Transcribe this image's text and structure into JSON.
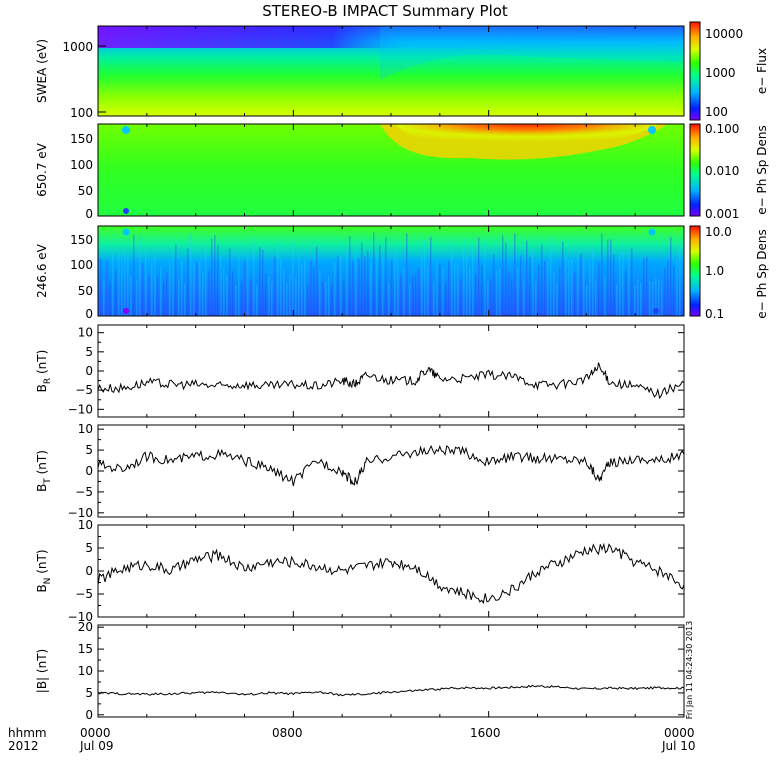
{
  "title": "STEREO-B IMPACT Summary Plot",
  "footer": {
    "time_label": "hhmm",
    "year_label": "2012",
    "ticks": [
      {
        "time": "0000",
        "date": "Jul 09"
      },
      {
        "time": "0800",
        "date": ""
      },
      {
        "time": "1600",
        "date": ""
      },
      {
        "time": "0000",
        "date": "Jul 10"
      }
    ]
  },
  "timestamp_text": "Fri Jan 11 04:24:30 2013",
  "chart_data": [
    {
      "type": "heatmap",
      "ylabel": "SWEA (eV)",
      "yscale": "log",
      "ylim": [
        100,
        1800
      ],
      "yticks": [
        "1000",
        "100"
      ],
      "colorbar_label": "e− Flux",
      "colorbar_scale": "log",
      "colorbar_ticks": [
        "10000",
        "1000",
        "100"
      ],
      "colormap": "rainbow",
      "description_values": "high flux at low energies, flux near 1000 at mid energies, higher-energy flux increasing after ~1100"
    },
    {
      "type": "heatmap",
      "ylabel": "650.7 eV",
      "ylim": [
        0,
        180
      ],
      "yticks": [
        "150",
        "100",
        "50",
        "0"
      ],
      "colorbar_label": "e− Ph Sp Dens",
      "colorbar_scale": "log",
      "colorbar_ticks": [
        "0.100",
        "0.010",
        "0.001"
      ],
      "colormap": "rainbow"
    },
    {
      "type": "heatmap",
      "ylabel": "246.6 eV",
      "ylim": [
        0,
        180
      ],
      "yticks": [
        "150",
        "100",
        "50",
        "0"
      ],
      "colorbar_label": "e− Ph Sp Dens",
      "colorbar_scale": "log",
      "colorbar_ticks": [
        "10.0",
        "1.0",
        "0.1"
      ],
      "colormap": "rainbow"
    },
    {
      "type": "line",
      "ylabel": "BR (nT)",
      "ylabel_main": "B",
      "ylabel_sub": "R",
      "ylabel_unit": "(nT)",
      "ylim": [
        -12,
        12
      ],
      "yticks": [
        "10",
        "5",
        "0",
        "−5",
        "−10"
      ],
      "xlim": [
        0,
        24
      ],
      "x": [
        0,
        1,
        2,
        3,
        4,
        5,
        6,
        7,
        8,
        9,
        10,
        10.5,
        11,
        12,
        13,
        13.5,
        14,
        15,
        16,
        17,
        18,
        19,
        20,
        20.5,
        21,
        22,
        23,
        24
      ],
      "y": [
        -4.5,
        -4.5,
        -3,
        -3.5,
        -3.5,
        -4,
        -3.5,
        -4,
        -3.5,
        -4,
        -2.5,
        -3.5,
        -1,
        -2.5,
        -2.5,
        0.5,
        -2,
        -2,
        -1,
        -1.5,
        -3.5,
        -3.5,
        -2,
        1,
        -3,
        -4,
        -6,
        -3
      ]
    },
    {
      "type": "line",
      "ylabel": "BT (nT)",
      "ylabel_main": "B",
      "ylabel_sub": "T",
      "ylabel_unit": "(nT)",
      "ylim": [
        -11,
        11
      ],
      "yticks": [
        "10",
        "5",
        "0",
        "−5",
        "−10"
      ],
      "xlim": [
        0,
        24
      ],
      "x": [
        0,
        1,
        2,
        3,
        4,
        5,
        6,
        7,
        8,
        9,
        10,
        10.5,
        11,
        12,
        13,
        14,
        15,
        16,
        17,
        18,
        19,
        20,
        20.5,
        21,
        22,
        23,
        24
      ],
      "y": [
        1.5,
        0.5,
        3.5,
        2.5,
        3.5,
        4,
        2.5,
        0.5,
        -2.5,
        2.5,
        0,
        -3,
        2,
        3.5,
        4.5,
        5,
        4.5,
        2,
        3.5,
        3,
        3,
        2.5,
        -2,
        2,
        3,
        2.5,
        4
      ]
    },
    {
      "type": "line",
      "ylabel": "BN (nT)",
      "ylabel_main": "B",
      "ylabel_sub": "N",
      "ylabel_unit": "(nT)",
      "ylim": [
        -10,
        10
      ],
      "yticks": [
        "10",
        "5",
        "0",
        "−5",
        "−10"
      ],
      "xlim": [
        0,
        24
      ],
      "x": [
        0,
        1,
        2,
        3,
        4,
        5,
        6,
        7,
        8,
        9,
        10,
        11,
        12,
        13,
        14,
        15,
        16,
        17,
        18,
        19,
        20,
        21,
        22,
        23,
        24
      ],
      "y": [
        -2,
        0.5,
        1.5,
        0,
        2.5,
        3.5,
        0.5,
        2,
        2,
        1,
        0,
        1,
        2,
        1,
        -3,
        -5,
        -6,
        -4,
        0,
        2,
        4.5,
        5,
        2,
        0,
        -3
      ]
    },
    {
      "type": "line",
      "ylabel": "|B| (nT)",
      "ylabel_main": "|B|",
      "ylabel_sub": "",
      "ylabel_unit": "(nT)",
      "ylim": [
        -0.5,
        20.5
      ],
      "yticks": [
        "20",
        "15",
        "10",
        "5",
        "0"
      ],
      "xlim": [
        0,
        24
      ],
      "x": [
        0,
        1,
        2,
        3,
        4,
        5,
        6,
        7,
        8,
        9,
        10,
        11,
        12,
        13,
        14,
        15,
        16,
        17,
        18,
        19,
        20,
        21,
        22,
        23,
        24
      ],
      "y": [
        5,
        4.8,
        4.7,
        4.8,
        5,
        5.2,
        4.6,
        5,
        4.8,
        5.2,
        4.5,
        4.7,
        5.2,
        5.5,
        5.9,
        6.2,
        6.1,
        6.3,
        6.6,
        6.3,
        5.9,
        6.1,
        6.0,
        6.2,
        6.1
      ]
    }
  ]
}
